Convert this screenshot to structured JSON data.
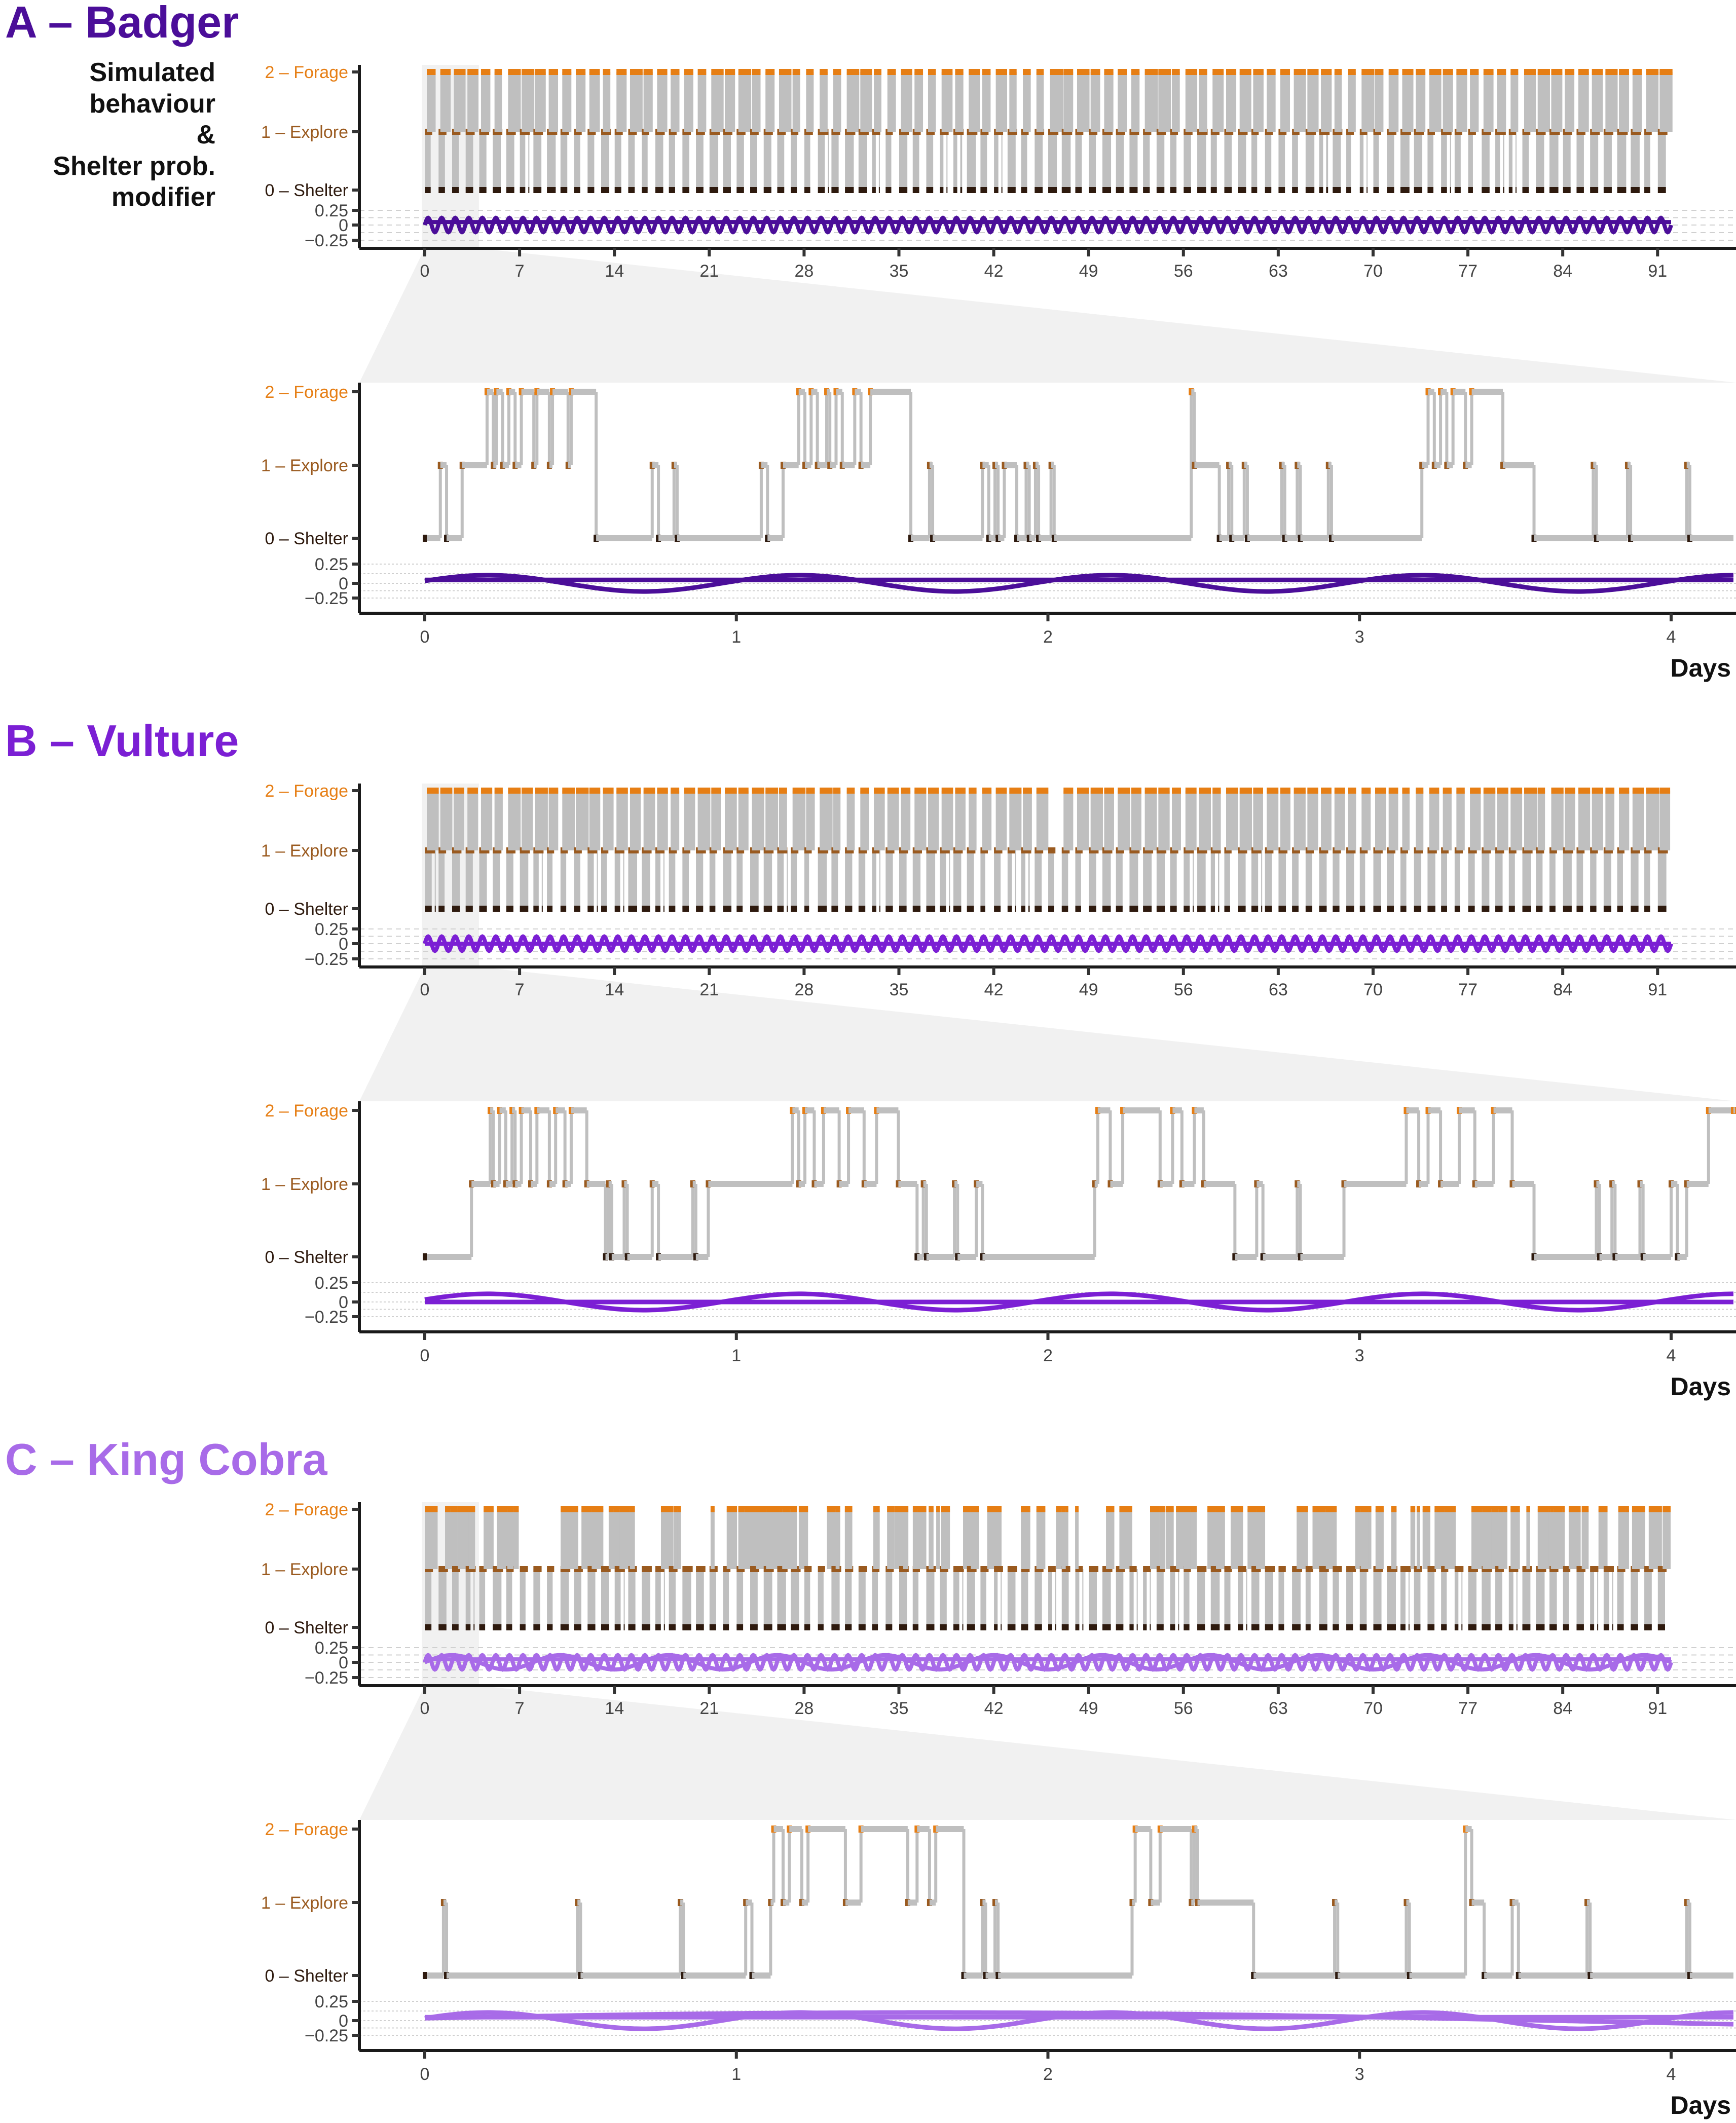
{
  "figure": {
    "side_label_lines": [
      "Simulated",
      "behaviour",
      "&",
      "Shelter prob.",
      "modifier"
    ],
    "x_axis_label": "Days"
  },
  "colors": {
    "forage": "#E67E14",
    "explore": "#9A5A1F",
    "shelter": "#2E1A0E",
    "transition": "#BFBFBF",
    "zoom_band": "#F1F1F1",
    "axis": "#1A1A1A",
    "gridline": "#D0D0D0"
  },
  "chart_data": [
    {
      "type": "line",
      "panel": "A",
      "title": "A – Badger",
      "title_color": "#4B0E99",
      "curve_color": "#4B0E99",
      "y_state_ticks": [
        "2 – Forage",
        "1 – Explore",
        "0 – Shelter"
      ],
      "y_modifier_ticks": [
        "0.25",
        "0",
        "−0.25"
      ],
      "modifier_ylim": [
        -0.25,
        0.25
      ],
      "overview": {
        "xlim": [
          0,
          95
        ],
        "x_ticks": [
          "0",
          "7",
          "14",
          "21",
          "28",
          "35",
          "42",
          "49",
          "56",
          "63",
          "70",
          "77",
          "84",
          "91"
        ],
        "x_tick_values": [
          0,
          7,
          14,
          21,
          28,
          35,
          42,
          49,
          56,
          63,
          70,
          77,
          84,
          91
        ],
        "data_end_day": 92,
        "zoom_window_days": [
          0,
          4
        ],
        "daily_forage_bouts": true,
        "forage_gap_days": [
          [
            18.5,
            19.3
          ],
          [
            38.5,
            39.3
          ]
        ],
        "explore_daily_cycles": 92
      },
      "detail": {
        "xlim": [
          0,
          4.2
        ],
        "x_ticks": [
          "0",
          "1",
          "2",
          "3",
          "4"
        ],
        "x_tick_values": [
          0,
          1,
          2,
          3,
          4
        ],
        "states": [
          [
            0,
            0
          ],
          [
            0.05,
            1
          ],
          [
            0.07,
            0
          ],
          [
            0.12,
            1
          ],
          [
            0.2,
            2
          ],
          [
            0.22,
            1
          ],
          [
            0.23,
            2
          ],
          [
            0.25,
            1
          ],
          [
            0.27,
            2
          ],
          [
            0.29,
            1
          ],
          [
            0.31,
            2
          ],
          [
            0.35,
            1
          ],
          [
            0.36,
            2
          ],
          [
            0.4,
            1
          ],
          [
            0.41,
            2
          ],
          [
            0.46,
            1
          ],
          [
            0.47,
            2
          ],
          [
            0.55,
            0
          ],
          [
            0.73,
            1
          ],
          [
            0.75,
            0
          ],
          [
            0.8,
            1
          ],
          [
            0.81,
            0
          ],
          [
            1.08,
            1
          ],
          [
            1.1,
            0
          ],
          [
            1.15,
            1
          ],
          [
            1.2,
            2
          ],
          [
            1.22,
            1
          ],
          [
            1.24,
            2
          ],
          [
            1.26,
            1
          ],
          [
            1.29,
            2
          ],
          [
            1.3,
            1
          ],
          [
            1.32,
            2
          ],
          [
            1.34,
            1
          ],
          [
            1.38,
            2
          ],
          [
            1.4,
            1
          ],
          [
            1.43,
            2
          ],
          [
            1.56,
            0
          ],
          [
            1.62,
            1
          ],
          [
            1.63,
            0
          ],
          [
            1.79,
            1
          ],
          [
            1.81,
            0
          ],
          [
            1.83,
            1
          ],
          [
            1.84,
            0
          ],
          [
            1.86,
            1
          ],
          [
            1.9,
            0
          ],
          [
            1.93,
            1
          ],
          [
            1.94,
            0
          ],
          [
            1.96,
            1
          ],
          [
            1.97,
            0
          ],
          [
            2.01,
            1
          ],
          [
            2.02,
            0
          ],
          [
            2.46,
            2
          ],
          [
            2.47,
            1
          ],
          [
            2.55,
            0
          ],
          [
            2.58,
            1
          ],
          [
            2.59,
            0
          ],
          [
            2.63,
            1
          ],
          [
            2.64,
            0
          ],
          [
            2.75,
            1
          ],
          [
            2.76,
            0
          ],
          [
            2.8,
            1
          ],
          [
            2.81,
            0
          ],
          [
            2.9,
            1
          ],
          [
            2.91,
            0
          ],
          [
            3.2,
            1
          ],
          [
            3.22,
            2
          ],
          [
            3.24,
            1
          ],
          [
            3.26,
            2
          ],
          [
            3.28,
            1
          ],
          [
            3.3,
            2
          ],
          [
            3.34,
            1
          ],
          [
            3.36,
            2
          ],
          [
            3.46,
            1
          ],
          [
            3.56,
            0
          ],
          [
            3.75,
            1
          ],
          [
            3.76,
            0
          ],
          [
            3.86,
            1
          ],
          [
            3.87,
            0
          ],
          [
            4.05,
            1
          ],
          [
            4.06,
            0
          ]
        ],
        "modifier_series": [
          {
            "name": "daily",
            "amplitude": 0.12,
            "period_days": 1,
            "phase_days": 0.0
          },
          {
            "name": "constant",
            "value": 0.05
          }
        ]
      }
    },
    {
      "type": "line",
      "panel": "B",
      "title": "B – Vulture",
      "title_color": "#7B1FD4",
      "curve_color": "#7B1FD4",
      "y_state_ticks": [
        "2 – Forage",
        "1 – Explore",
        "0 – Shelter"
      ],
      "y_modifier_ticks": [
        "0.25",
        "0",
        "−0.25"
      ],
      "modifier_ylim": [
        -0.25,
        0.25
      ],
      "overview": {
        "xlim": [
          0,
          95
        ],
        "x_ticks": [
          "0",
          "7",
          "14",
          "21",
          "28",
          "35",
          "42",
          "49",
          "56",
          "63",
          "70",
          "77",
          "84",
          "91"
        ],
        "x_tick_values": [
          0,
          7,
          14,
          21,
          28,
          35,
          42,
          49,
          56,
          63,
          70,
          77,
          84,
          91
        ],
        "data_end_day": 92,
        "zoom_window_days": [
          0,
          4
        ],
        "daily_forage_bouts": true,
        "forage_gap_days": [
          [
            46.3,
            46.7
          ]
        ],
        "explore_daily_cycles": 92
      },
      "detail": {
        "xlim": [
          0,
          4.2
        ],
        "x_ticks": [
          "0",
          "1",
          "2",
          "3",
          "4"
        ],
        "x_tick_values": [
          0,
          1,
          2,
          3,
          4
        ],
        "states": [
          [
            0,
            0
          ],
          [
            0.15,
            1
          ],
          [
            0.21,
            2
          ],
          [
            0.22,
            1
          ],
          [
            0.24,
            2
          ],
          [
            0.26,
            1
          ],
          [
            0.28,
            2
          ],
          [
            0.29,
            1
          ],
          [
            0.31,
            2
          ],
          [
            0.34,
            1
          ],
          [
            0.36,
            2
          ],
          [
            0.4,
            1
          ],
          [
            0.42,
            2
          ],
          [
            0.45,
            1
          ],
          [
            0.47,
            2
          ],
          [
            0.52,
            1
          ],
          [
            0.58,
            0
          ],
          [
            0.59,
            1
          ],
          [
            0.6,
            0
          ],
          [
            0.64,
            1
          ],
          [
            0.65,
            0
          ],
          [
            0.73,
            1
          ],
          [
            0.75,
            0
          ],
          [
            0.86,
            1
          ],
          [
            0.87,
            0
          ],
          [
            0.91,
            1
          ],
          [
            1.18,
            2
          ],
          [
            1.2,
            1
          ],
          [
            1.22,
            2
          ],
          [
            1.25,
            1
          ],
          [
            1.28,
            2
          ],
          [
            1.33,
            1
          ],
          [
            1.36,
            2
          ],
          [
            1.41,
            1
          ],
          [
            1.45,
            2
          ],
          [
            1.52,
            1
          ],
          [
            1.58,
            0
          ],
          [
            1.6,
            1
          ],
          [
            1.61,
            0
          ],
          [
            1.7,
            1
          ],
          [
            1.71,
            0
          ],
          [
            1.77,
            1
          ],
          [
            1.79,
            0
          ],
          [
            2.15,
            1
          ],
          [
            2.16,
            2
          ],
          [
            2.2,
            1
          ],
          [
            2.24,
            2
          ],
          [
            2.36,
            1
          ],
          [
            2.4,
            2
          ],
          [
            2.43,
            1
          ],
          [
            2.47,
            2
          ],
          [
            2.5,
            1
          ],
          [
            2.6,
            0
          ],
          [
            2.67,
            1
          ],
          [
            2.69,
            0
          ],
          [
            2.8,
            1
          ],
          [
            2.81,
            0
          ],
          [
            2.95,
            1
          ],
          [
            3.15,
            2
          ],
          [
            3.19,
            1
          ],
          [
            3.22,
            2
          ],
          [
            3.26,
            1
          ],
          [
            3.32,
            2
          ],
          [
            3.37,
            1
          ],
          [
            3.43,
            2
          ],
          [
            3.49,
            1
          ],
          [
            3.56,
            0
          ],
          [
            3.76,
            1
          ],
          [
            3.77,
            0
          ],
          [
            3.81,
            1
          ],
          [
            3.82,
            0
          ],
          [
            3.9,
            1
          ],
          [
            3.91,
            0
          ],
          [
            4.0,
            1
          ],
          [
            4.02,
            0
          ],
          [
            4.05,
            1
          ],
          [
            4.12,
            2
          ],
          [
            4.2,
            2
          ]
        ],
        "modifier_series": [
          {
            "name": "daily",
            "amplitude": 0.12,
            "period_days": 1,
            "phase_days": 0.0
          },
          {
            "name": "constant",
            "value": 0.0
          }
        ]
      }
    },
    {
      "type": "line",
      "panel": "C",
      "title": "C – King Cobra",
      "title_color": "#A86BE8",
      "curve_color": "#A86BE8",
      "y_state_ticks": [
        "2 – Forage",
        "1 – Explore",
        "0 – Shelter"
      ],
      "y_modifier_ticks": [
        "0.25",
        "0",
        "−0.25"
      ],
      "modifier_ylim": [
        -0.25,
        0.25
      ],
      "overview": {
        "xlim": [
          0,
          95
        ],
        "x_ticks": [
          "0",
          "7",
          "14",
          "21",
          "28",
          "35",
          "42",
          "49",
          "56",
          "63",
          "70",
          "77",
          "84",
          "91"
        ],
        "x_tick_values": [
          0,
          7,
          14,
          21,
          28,
          35,
          42,
          49,
          56,
          63,
          70,
          77,
          84,
          91
        ],
        "data_end_day": 92,
        "zoom_window_days": [
          0,
          4
        ],
        "daily_forage_bouts": false,
        "forage_gap_days": [],
        "explore_daily_cycles": 92
      },
      "detail": {
        "xlim": [
          0,
          4.2
        ],
        "x_ticks": [
          "0",
          "1",
          "2",
          "3",
          "4"
        ],
        "x_tick_values": [
          0,
          1,
          2,
          3,
          4
        ],
        "states": [
          [
            0,
            0
          ],
          [
            0.06,
            1
          ],
          [
            0.07,
            0
          ],
          [
            0.49,
            1
          ],
          [
            0.5,
            0
          ],
          [
            0.82,
            1
          ],
          [
            0.83,
            0
          ],
          [
            1.03,
            1
          ],
          [
            1.05,
            0
          ],
          [
            1.11,
            1
          ],
          [
            1.12,
            2
          ],
          [
            1.15,
            1
          ],
          [
            1.17,
            2
          ],
          [
            1.21,
            1
          ],
          [
            1.23,
            2
          ],
          [
            1.35,
            1
          ],
          [
            1.4,
            2
          ],
          [
            1.55,
            1
          ],
          [
            1.58,
            2
          ],
          [
            1.62,
            1
          ],
          [
            1.64,
            2
          ],
          [
            1.73,
            0
          ],
          [
            1.79,
            1
          ],
          [
            1.8,
            0
          ],
          [
            1.83,
            1
          ],
          [
            1.84,
            0
          ],
          [
            2.27,
            1
          ],
          [
            2.28,
            2
          ],
          [
            2.33,
            1
          ],
          [
            2.36,
            2
          ],
          [
            2.46,
            1
          ],
          [
            2.47,
            2
          ],
          [
            2.48,
            1
          ],
          [
            2.66,
            0
          ],
          [
            2.92,
            1
          ],
          [
            2.93,
            0
          ],
          [
            3.15,
            1
          ],
          [
            3.16,
            0
          ],
          [
            3.34,
            2
          ],
          [
            3.36,
            1
          ],
          [
            3.4,
            0
          ],
          [
            3.49,
            1
          ],
          [
            3.51,
            0
          ],
          [
            3.73,
            1
          ],
          [
            3.74,
            0
          ],
          [
            4.05,
            1
          ],
          [
            4.06,
            0
          ]
        ],
        "modifier_series": [
          {
            "name": "daily",
            "amplitude": 0.12,
            "period_days": 1,
            "phase_days": 0.0
          },
          {
            "name": "slow",
            "amplitude": 0.12,
            "period_days": 8,
            "phase_days": 0.0
          },
          {
            "name": "constant",
            "value": 0.05
          }
        ]
      }
    }
  ]
}
